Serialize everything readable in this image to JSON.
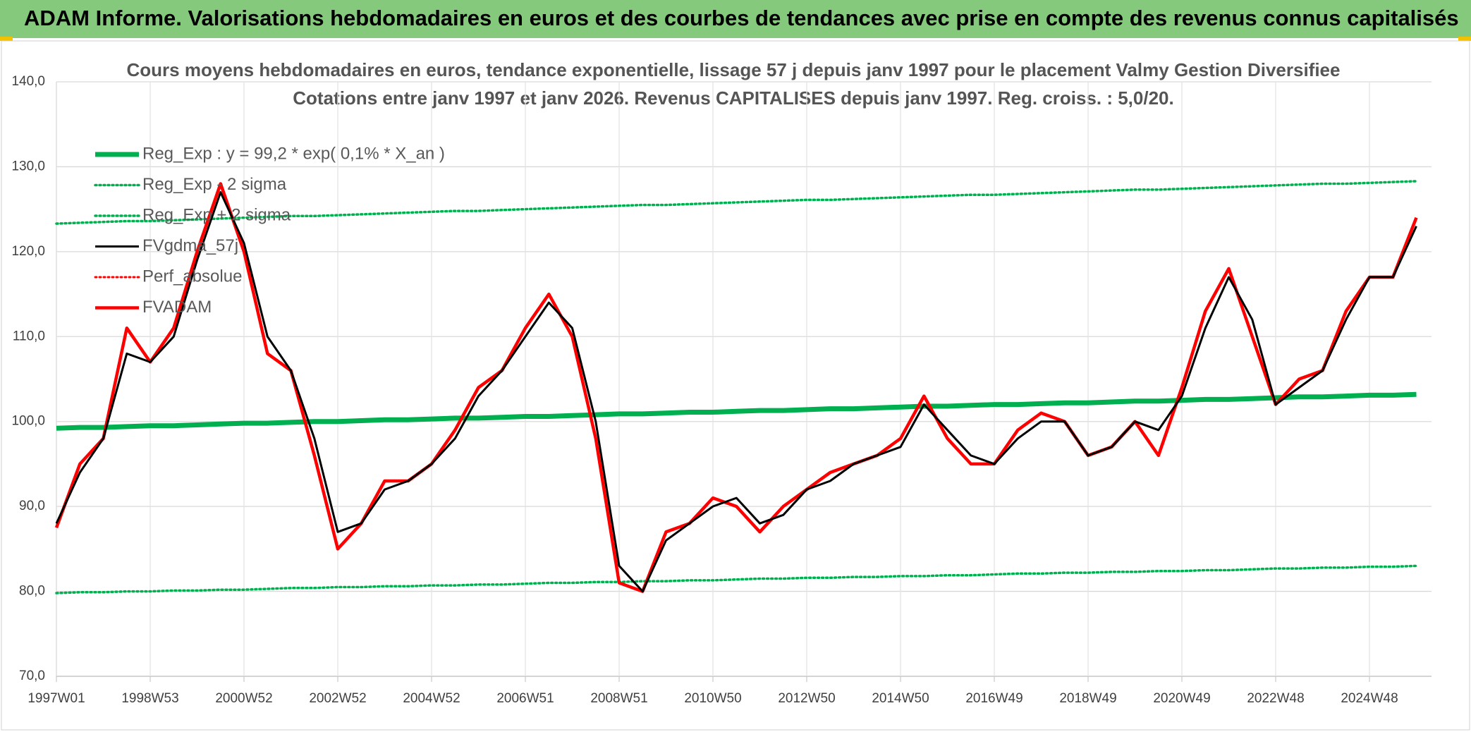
{
  "header": {
    "title": "ADAM Informe. Valorisations hebdomadaires en euros et des courbes de tendances avec prise en compte des revenus connus capitalisés"
  },
  "chart_data": {
    "type": "line",
    "title": "Cours moyens hebdomadaires en euros, tendance exponentielle, lissage 57 j depuis janv 1997 pour le placement Valmy Gestion Diversifiee",
    "subtitle": "Cotations entre janv 1997 et janv 2026. Revenus CAPITALISES depuis janv 1997. Reg. croiss. : 5,0/20.",
    "categories": [
      "1997W01",
      null,
      null,
      null,
      "1998W53",
      null,
      null,
      null,
      "2000W52",
      null,
      null,
      null,
      "2002W52",
      null,
      null,
      null,
      "2004W52",
      null,
      null,
      null,
      "2006W51",
      null,
      null,
      null,
      "2008W51",
      null,
      null,
      null,
      "2010W50",
      null,
      null,
      null,
      "2012W50",
      null,
      null,
      null,
      "2014W50",
      null,
      null,
      null,
      "2016W49",
      null,
      null,
      null,
      "2018W49",
      null,
      null,
      null,
      "2020W49",
      null,
      null,
      null,
      "2022W48",
      null,
      null,
      null,
      "2024W48",
      null,
      null
    ],
    "ylim": [
      70,
      140
    ],
    "yticks": [
      {
        "value": 70,
        "label": "70,0"
      },
      {
        "value": 80,
        "label": "80,0"
      },
      {
        "value": 90,
        "label": "90,0"
      },
      {
        "value": 100,
        "label": "100,0"
      },
      {
        "value": 110,
        "label": "110,0"
      },
      {
        "value": 120,
        "label": "120,0"
      },
      {
        "value": 130,
        "label": "130,0"
      },
      {
        "value": 140,
        "label": "140,0"
      }
    ],
    "grid": true,
    "legend": "top-left",
    "series": [
      {
        "name": "Reg_Exp : y = 99,2 * exp( 0,1% *  X_an )",
        "color": "#00b050",
        "style": "solid",
        "values": [
          99.2,
          99.3,
          99.3,
          99.4,
          99.5,
          99.5,
          99.6,
          99.7,
          99.8,
          99.8,
          99.9,
          100.0,
          100.0,
          100.1,
          100.2,
          100.2,
          100.3,
          100.4,
          100.4,
          100.5,
          100.6,
          100.6,
          100.7,
          100.8,
          100.9,
          100.9,
          101.0,
          101.1,
          101.1,
          101.2,
          101.3,
          101.3,
          101.4,
          101.5,
          101.5,
          101.6,
          101.7,
          101.8,
          101.8,
          101.9,
          102.0,
          102.0,
          102.1,
          102.2,
          102.2,
          102.3,
          102.4,
          102.4,
          102.5,
          102.6,
          102.6,
          102.7,
          102.8,
          102.9,
          102.9,
          103.0,
          103.1,
          103.1,
          103.2
        ]
      },
      {
        "name": "Reg_Exp - 2 sigma",
        "color": "#00b050",
        "style": "dotted",
        "values": [
          79.8,
          79.9,
          79.9,
          80.0,
          80.0,
          80.1,
          80.1,
          80.2,
          80.2,
          80.3,
          80.4,
          80.4,
          80.5,
          80.5,
          80.6,
          80.6,
          80.7,
          80.7,
          80.8,
          80.8,
          80.9,
          81.0,
          81.0,
          81.1,
          81.1,
          81.2,
          81.2,
          81.3,
          81.3,
          81.4,
          81.5,
          81.5,
          81.6,
          81.6,
          81.7,
          81.7,
          81.8,
          81.8,
          81.9,
          81.9,
          82.0,
          82.1,
          82.1,
          82.2,
          82.2,
          82.3,
          82.3,
          82.4,
          82.4,
          82.5,
          82.5,
          82.6,
          82.7,
          82.7,
          82.8,
          82.8,
          82.9,
          82.9,
          83.0
        ]
      },
      {
        "name": "Reg_Exp + 2 sigma",
        "color": "#00b050",
        "style": "dotted",
        "values": [
          123.3,
          123.4,
          123.5,
          123.6,
          123.6,
          123.7,
          123.8,
          123.9,
          124.0,
          124.1,
          124.2,
          124.2,
          124.3,
          124.4,
          124.5,
          124.6,
          124.7,
          124.8,
          124.8,
          124.9,
          125.0,
          125.1,
          125.2,
          125.3,
          125.4,
          125.5,
          125.5,
          125.6,
          125.7,
          125.8,
          125.9,
          126.0,
          126.1,
          126.1,
          126.2,
          126.3,
          126.4,
          126.5,
          126.6,
          126.7,
          126.7,
          126.8,
          126.9,
          127.0,
          127.1,
          127.2,
          127.3,
          127.3,
          127.4,
          127.5,
          127.6,
          127.7,
          127.8,
          127.9,
          128.0,
          128.0,
          128.1,
          128.2,
          128.3
        ]
      },
      {
        "name": "FVgdma_57j",
        "color": "#000000",
        "style": "solid",
        "values": [
          88,
          94,
          98,
          108,
          107,
          110,
          119,
          127,
          121,
          110,
          106,
          98,
          87,
          88,
          92,
          93,
          95,
          98,
          103,
          106,
          110,
          114,
          111,
          100,
          83,
          80,
          86,
          88,
          90,
          91,
          88,
          89,
          92,
          93,
          95,
          96,
          97,
          102,
          99,
          96,
          95,
          98,
          100,
          100,
          96,
          97,
          100,
          99,
          103,
          111,
          117,
          112,
          102,
          104,
          106,
          112,
          117,
          117,
          123
        ]
      },
      {
        "name": "Perf_absolue",
        "color": "#ff0000",
        "style": "dotted",
        "values": [
          null,
          null,
          null,
          null,
          null,
          null,
          null,
          null,
          null,
          null,
          null,
          null,
          null,
          null,
          null,
          null,
          null,
          null,
          null,
          null,
          null,
          null,
          null,
          null,
          null,
          null,
          null,
          null,
          null,
          null,
          null,
          null,
          null,
          null,
          null,
          null,
          null,
          null,
          null,
          null,
          null,
          null,
          null,
          null,
          null,
          null,
          null,
          null,
          null,
          null,
          null,
          null,
          null,
          null,
          null,
          null,
          null,
          null,
          null
        ]
      },
      {
        "name": "FVADAM",
        "color": "#ff0000",
        "style": "solid",
        "values": [
          87.5,
          95,
          98,
          111,
          107,
          111,
          120,
          128,
          120,
          108,
          106,
          96,
          85,
          88,
          93,
          93,
          95,
          99,
          104,
          106,
          111,
          115,
          110,
          98,
          81,
          80,
          87,
          88,
          91,
          90,
          87,
          90,
          92,
          94,
          95,
          96,
          98,
          103,
          98,
          95,
          95,
          99,
          101,
          100,
          96,
          97,
          100,
          96,
          104,
          113,
          118,
          110,
          102,
          105,
          106,
          113,
          117,
          117,
          124
        ]
      }
    ]
  }
}
